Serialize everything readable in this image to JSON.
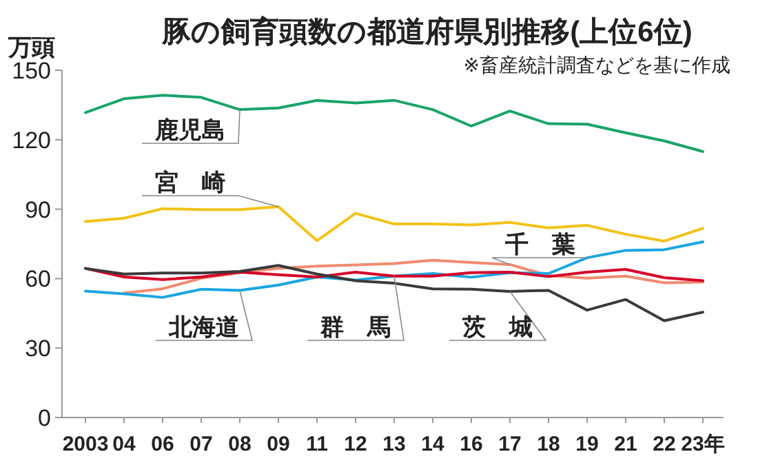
{
  "chart_data": {
    "type": "line",
    "title": "豚の飼育頭数の都道府県別推移(上位6位)",
    "subtitle": "※畜産統計調査などを基に作成",
    "ylabel": "万頭",
    "categories": [
      "2003",
      "04",
      "06",
      "07",
      "08",
      "09",
      "11",
      "12",
      "13",
      "14",
      "16",
      "17",
      "18",
      "19",
      "21",
      "22",
      "23年"
    ],
    "ylim": [
      0,
      150
    ],
    "yticks": [
      0,
      30,
      60,
      90,
      120,
      150
    ],
    "grid": false,
    "marker": "none",
    "line_style": "solid",
    "series": [
      {
        "name": "鹿児島",
        "color": "#1aa36b",
        "values": [
          131.7,
          137.7,
          139.2,
          138.3,
          133,
          133.7,
          137,
          135.9,
          137,
          133,
          125.9,
          132.4,
          126.9,
          126.7,
          123,
          119.5,
          114.9
        ]
      },
      {
        "name": "宮　崎",
        "color": "#f2c318",
        "values": [
          84.7,
          86.1,
          90.2,
          89.8,
          89.8,
          91.1,
          76.4,
          88.2,
          83.6,
          83.6,
          83.2,
          84.3,
          81.9,
          83,
          79.2,
          76.2,
          81.7
        ]
      },
      {
        "name": "千　葉",
        "color": "#f08c70",
        "values": [
          null,
          53.8,
          55.6,
          60.2,
          62.6,
          64.4,
          65.4,
          65.9,
          66.5,
          67.9,
          67,
          66.1,
          61.3,
          60.2,
          61.1,
          58.2,
          58.5
        ]
      },
      {
        "name": "北海道",
        "color": "#1aa6e0",
        "values": [
          54.6,
          53.4,
          51.9,
          55.4,
          54.9,
          57.2,
          60.7,
          59.4,
          61.1,
          62.2,
          60.6,
          62.6,
          62.2,
          69,
          72.2,
          72.5,
          75.9
        ]
      },
      {
        "name": "群　馬",
        "color": "#d6002a",
        "values": [
          64.4,
          60.7,
          59.6,
          60.7,
          62.8,
          61.7,
          60.7,
          62.8,
          61.1,
          61.1,
          62.6,
          62.8,
          60.9,
          62.8,
          64,
          60.4,
          59.1
        ]
      },
      {
        "name": "茨　城",
        "color": "#3a3a3a",
        "values": [
          64.4,
          62,
          62.4,
          62.4,
          63.1,
          65.7,
          62,
          59.1,
          58,
          55.6,
          55.4,
          54.5,
          54.9,
          46.4,
          51,
          41.8,
          45.5
        ]
      }
    ]
  }
}
